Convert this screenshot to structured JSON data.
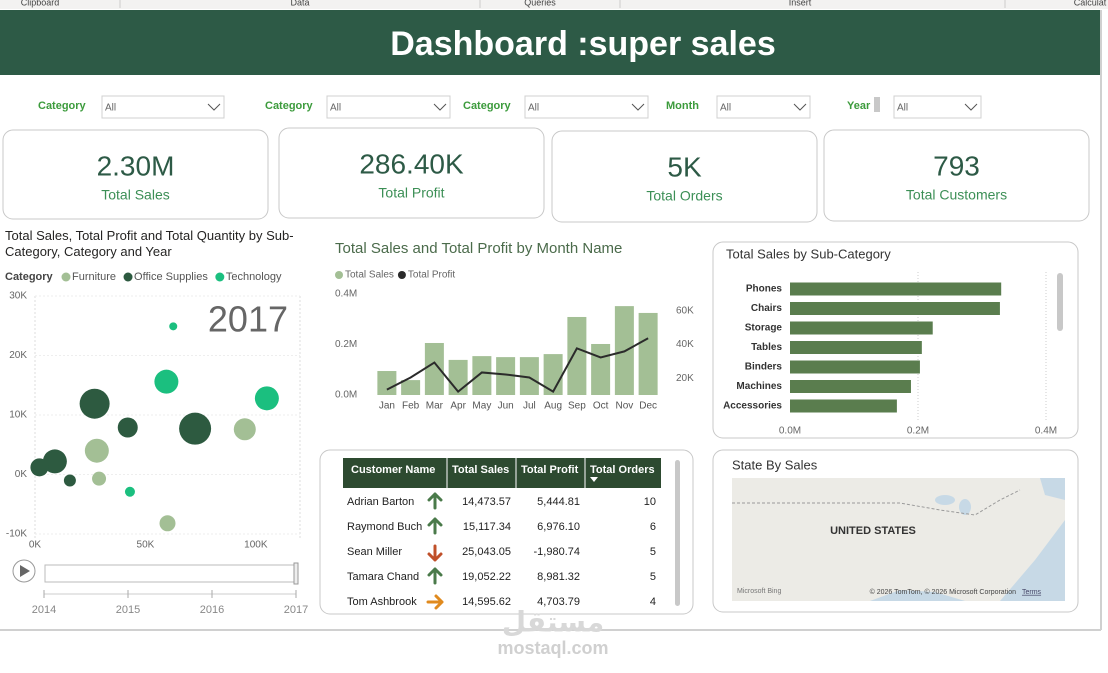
{
  "ribbon": [
    "Clipboard",
    "Data",
    "Queries",
    "Insert",
    "Calculat"
  ],
  "header": {
    "title": "Dashboard :super sales"
  },
  "filters": [
    {
      "label": "Category",
      "value": "All"
    },
    {
      "label": "Category",
      "value": "All"
    },
    {
      "label": "Category",
      "value": "All"
    },
    {
      "label": "Month",
      "value": "All"
    },
    {
      "label": "Year",
      "value": "All"
    }
  ],
  "kpis": [
    {
      "value": "2.30M",
      "label": "Total Sales"
    },
    {
      "value": "286.40K",
      "label": "Total Profit"
    },
    {
      "value": "5K",
      "label": "Total Orders"
    },
    {
      "value": "793",
      "label": "Total Customers"
    }
  ],
  "chart_data": [
    {
      "type": "scatter",
      "title": "Total Sales, Total Profit and Total Quantity by Sub-Category, Category and Year",
      "legend_title": "Category",
      "series": [
        {
          "name": "Furniture",
          "color": "#a3bf95",
          "x": [
            28000,
            95000,
            29000,
            60000
          ],
          "values": [
            4000,
            7600,
            -700,
            -8200
          ],
          "sizes": [
            576,
            484,
            196,
            256
          ]
        },
        {
          "name": "Office Supplies",
          "color": "#2d5a40",
          "x": [
            27000,
            72500,
            42000,
            9000,
            2000,
            15800
          ],
          "values": [
            11900,
            7700,
            7900,
            2200,
            1200,
            -1000
          ],
          "sizes": [
            900,
            1024,
            400,
            576,
            324,
            144
          ]
        },
        {
          "name": "Technology",
          "color": "#1bbf7f",
          "x": [
            62600,
            59500,
            105000,
            43000
          ],
          "values": [
            24900,
            15600,
            12800,
            -2900
          ],
          "sizes": [
            64,
            576,
            576,
            100
          ]
        }
      ],
      "xlim": [
        0,
        120000
      ],
      "xticks": [
        {
          "value": 0,
          "label": "0K"
        },
        {
          "value": 50000,
          "label": "50K"
        },
        {
          "value": 100000,
          "label": "100K"
        }
      ],
      "ylim": [
        -10000,
        30000
      ],
      "yticks": [
        {
          "value": 30000,
          "label": "30K"
        },
        {
          "value": 20000,
          "label": "20K"
        },
        {
          "value": 10000,
          "label": "10K"
        },
        {
          "value": 0,
          "label": "0K"
        },
        {
          "value": -10000,
          "label": "-10K"
        }
      ],
      "grid": true,
      "play_axis": {
        "current": "2017",
        "years": [
          "2014",
          "2015",
          "2016",
          "2017"
        ]
      }
    },
    {
      "type": "combo",
      "title": "Total Sales and Total Profit by Month Name",
      "categories": [
        "Jan",
        "Feb",
        "Mar",
        "Apr",
        "May",
        "Jun",
        "Jul",
        "Aug",
        "Sep",
        "Oct",
        "Nov",
        "Dec"
      ],
      "series": [
        {
          "name": "Total Sales",
          "type": "bar",
          "color": "#a3bf95",
          "values": [
            95000,
            59000,
            206000,
            139000,
            154000,
            150000,
            150000,
            162000,
            309000,
            202000,
            352000,
            325000
          ]
        },
        {
          "name": "Total Profit",
          "type": "line",
          "axis": "y2",
          "color": "#2b2b2b",
          "values": [
            13200,
            20400,
            29300,
            12000,
            23400,
            22200,
            20400,
            12000,
            37700,
            32300,
            35900,
            43700
          ]
        }
      ],
      "ylim": [
        0,
        400000
      ],
      "yticks": [
        {
          "value": 0,
          "label": "0.0M"
        },
        {
          "value": 200000,
          "label": "0.2M"
        },
        {
          "value": 400000,
          "label": "0.4M"
        }
      ],
      "y2lim": [
        10000,
        70000
      ],
      "y2ticks": [
        {
          "value": 20000,
          "label": "20K"
        },
        {
          "value": 40000,
          "label": "40K"
        },
        {
          "value": 60000,
          "label": "60K"
        }
      ],
      "grid": false
    },
    {
      "type": "barh",
      "title": "Total Sales by Sub-Category",
      "categories": [
        "Phones",
        "Chairs",
        "Storage",
        "Tables",
        "Binders",
        "Machines",
        "Accessories"
      ],
      "values": [
        330000,
        328000,
        223000,
        206000,
        203000,
        189000,
        167000
      ],
      "color": "#5a7d4e",
      "xlim": [
        0,
        400000
      ],
      "xticks": [
        {
          "value": 0,
          "label": "0.0M"
        },
        {
          "value": 200000,
          "label": "0.2M"
        },
        {
          "value": 400000,
          "label": "0.4M"
        }
      ],
      "grid": true
    }
  ],
  "table": {
    "columns": [
      "Customer Name",
      "Total Sales",
      "Total Profit",
      "Total Orders"
    ],
    "rows": [
      {
        "cells": [
          "Adrian Barton",
          "14,473.57",
          "5,444.81",
          "10"
        ],
        "trend": "up"
      },
      {
        "cells": [
          "Raymond Buch",
          "15,117.34",
          "6,976.10",
          "6"
        ],
        "trend": "up"
      },
      {
        "cells": [
          "Sean Miller",
          "25,043.05",
          "-1,980.74",
          "5"
        ],
        "trend": "down"
      },
      {
        "cells": [
          "Tamara Chand",
          "19,052.22",
          "8,981.32",
          "5"
        ],
        "trend": "up"
      },
      {
        "cells": [
          "Tom Ashbrook",
          "14,595.62",
          "4,703.79",
          "4"
        ],
        "trend": "flat"
      }
    ]
  },
  "map": {
    "title": "State By Sales",
    "label": "UNITED STATES",
    "brand": "Microsoft Bing",
    "credits": "© 2026 TomTom, © 2026 Microsoft Corporation",
    "terms": "Terms"
  },
  "watermark": {
    "logo": "مستقل",
    "site": "mostaql.com"
  }
}
